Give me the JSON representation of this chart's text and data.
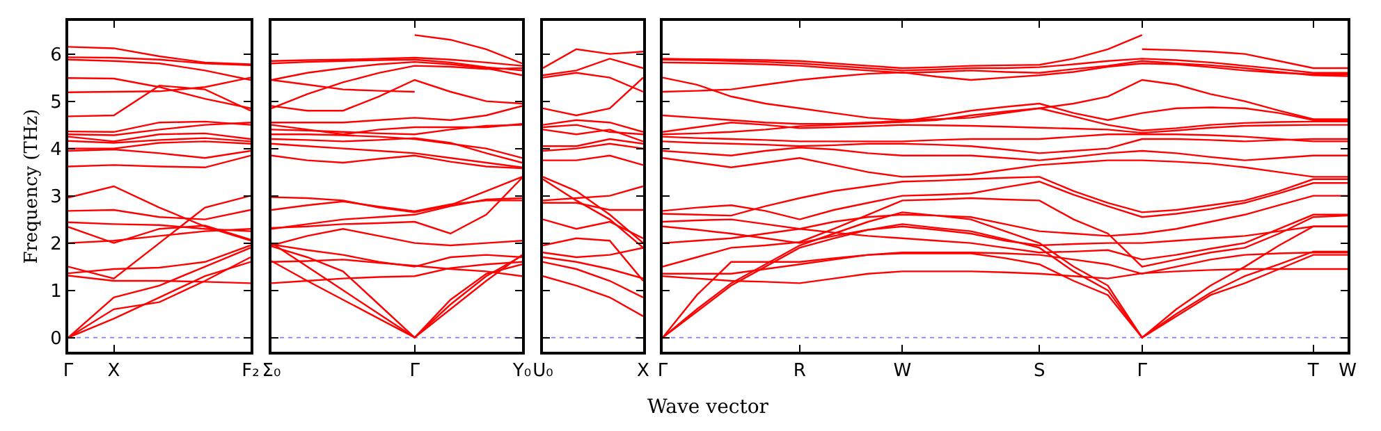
{
  "chart_data": [
    {
      "type": "line",
      "ylabel": "Frequency (THz)",
      "categories": [
        "Γ",
        "X",
        null,
        null,
        "F₂"
      ],
      "ylim": [
        -0.3,
        6.7
      ],
      "yticks": [
        0,
        1,
        2,
        3,
        4,
        5,
        6
      ],
      "grid": false,
      "marker": "none",
      "line_style": "solid",
      "ref_lines": [
        {
          "axis": "y",
          "value": 0,
          "color": "#8080ff",
          "line_style": "dotted"
        }
      ],
      "series": [
        {
          "color": "#ff0000",
          "values": [
            6.15,
            6.12,
            5.95,
            5.82,
            5.78
          ]
        },
        {
          "color": "#ff0000",
          "values": [
            5.93,
            5.92,
            5.88,
            5.8,
            5.76
          ]
        },
        {
          "color": "#ff0000",
          "values": [
            5.88,
            5.85,
            5.8,
            5.65,
            5.45
          ]
        },
        {
          "color": "#ff0000",
          "values": [
            5.49,
            5.48,
            5.3,
            5.05,
            4.85
          ]
        },
        {
          "color": "#ff0000",
          "values": [
            5.19,
            5.2,
            5.21,
            5.3,
            5.5
          ]
        },
        {
          "color": "#ff0000",
          "values": [
            4.68,
            4.7,
            5.33,
            5.25,
            4.8
          ]
        },
        {
          "color": "#ff0000",
          "values": [
            4.36,
            4.35,
            4.55,
            4.57,
            4.5
          ]
        },
        {
          "color": "#ff0000",
          "values": [
            4.3,
            4.28,
            4.4,
            4.5,
            4.55
          ]
        },
        {
          "color": "#ff0000",
          "values": [
            4.25,
            4.15,
            4.3,
            4.32,
            4.2
          ]
        },
        {
          "color": "#ff0000",
          "values": [
            4.16,
            4.12,
            4.18,
            4.22,
            4.15
          ]
        },
        {
          "color": "#ff0000",
          "values": [
            4.0,
            4.0,
            4.12,
            4.15,
            4.1
          ]
        },
        {
          "color": "#ff0000",
          "values": [
            3.95,
            3.98,
            3.9,
            3.8,
            3.95
          ]
        },
        {
          "color": "#ff0000",
          "values": [
            3.62,
            3.65,
            3.62,
            3.6,
            3.85
          ]
        },
        {
          "color": "#ff0000",
          "values": [
            2.96,
            3.2,
            2.75,
            2.35,
            2.05
          ]
        },
        {
          "color": "#ff0000",
          "values": [
            2.68,
            2.7,
            2.55,
            2.5,
            2.7
          ]
        },
        {
          "color": "#ff0000",
          "values": [
            2.44,
            2.4,
            2.38,
            2.3,
            2.25
          ]
        },
        {
          "color": "#ff0000",
          "values": [
            2.34,
            2.0,
            2.3,
            2.37,
            2.07
          ]
        },
        {
          "color": "#ff0000",
          "values": [
            2.0,
            2.05,
            2.15,
            2.25,
            2.3
          ]
        },
        {
          "color": "#ff0000",
          "values": [
            1.5,
            1.25,
            2.0,
            2.75,
            3.0
          ]
        },
        {
          "color": "#ff0000",
          "values": [
            1.36,
            1.45,
            1.48,
            1.6,
            1.95
          ]
        },
        {
          "color": "#ff0000",
          "values": [
            1.31,
            1.2,
            1.2,
            1.18,
            1.15
          ]
        },
        {
          "color": "#ff0000",
          "values": [
            0,
            0.85,
            1.1,
            1.5,
            1.9
          ]
        },
        {
          "color": "#ff0000",
          "values": [
            0,
            0.6,
            0.75,
            1.2,
            1.7
          ]
        },
        {
          "color": "#ff0000",
          "values": [
            0,
            0.4,
            0.85,
            1.3,
            1.6
          ]
        }
      ]
    },
    {
      "type": "line",
      "tick_labels": "x",
      "categories": [
        "Σ₀",
        null,
        null,
        null,
        "Γ",
        null,
        null,
        "Y₀"
      ],
      "ylim": [
        -0.3,
        6.7
      ],
      "yticks": [
        0,
        1,
        2,
        3,
        4,
        5,
        6
      ],
      "grid": false,
      "marker": "none",
      "line_style": "solid",
      "ref_lines": [
        {
          "axis": "y",
          "value": 0,
          "color": "#8080ff",
          "line_style": "dotted"
        }
      ],
      "series": [
        {
          "color": "#ff0000",
          "values": [
            null,
            null,
            null,
            null,
            6.4,
            6.3,
            6.1,
            5.8
          ]
        },
        {
          "color": "#ff0000",
          "values": [
            5.85,
            5.87,
            5.88,
            5.9,
            5.92,
            5.88,
            5.82,
            5.75
          ]
        },
        {
          "color": "#ff0000",
          "values": [
            5.8,
            5.83,
            5.85,
            5.87,
            5.88,
            5.82,
            5.72,
            5.65
          ]
        },
        {
          "color": "#ff0000",
          "values": [
            5.45,
            5.6,
            5.7,
            5.78,
            5.83,
            5.78,
            5.7,
            5.55
          ]
        },
        {
          "color": "#ff0000",
          "values": [
            5.45,
            5.35,
            5.25,
            5.22,
            5.2,
            null,
            null,
            null
          ]
        },
        {
          "color": "#ff0000",
          "values": [
            4.9,
            4.8,
            4.8,
            5.1,
            5.45,
            5.2,
            5.0,
            4.95
          ]
        },
        {
          "color": "#ff0000",
          "values": [
            4.85,
            5.15,
            5.4,
            5.6,
            5.75,
            5.73,
            5.68,
            5.7
          ]
        },
        {
          "color": "#ff0000",
          "values": [
            4.55,
            4.55,
            4.55,
            4.6,
            4.65,
            4.6,
            4.7,
            4.9
          ]
        },
        {
          "color": "#ff0000",
          "values": [
            4.5,
            4.4,
            4.3,
            4.4,
            4.45,
            4.45,
            4.45,
            4.52
          ]
        },
        {
          "color": "#ff0000",
          "values": [
            4.4,
            4.38,
            4.35,
            4.32,
            4.3,
            4.4,
            4.48,
            4.5
          ]
        },
        {
          "color": "#ff0000",
          "values": [
            4.3,
            4.3,
            4.28,
            4.25,
            4.2,
            4.1,
            4.0,
            3.8
          ]
        },
        {
          "color": "#ff0000",
          "values": [
            4.2,
            4.18,
            4.15,
            4.18,
            4.22,
            4.12,
            3.9,
            3.7
          ]
        },
        {
          "color": "#ff0000",
          "values": [
            4.1,
            4.05,
            4.0,
            3.95,
            3.9,
            3.8,
            3.7,
            3.6
          ]
        },
        {
          "color": "#ff0000",
          "values": [
            3.85,
            3.75,
            3.7,
            3.78,
            3.85,
            3.72,
            3.62,
            3.58
          ]
        },
        {
          "color": "#ff0000",
          "values": [
            2.97,
            2.95,
            2.9,
            2.75,
            2.65,
            2.8,
            3.1,
            3.4
          ]
        },
        {
          "color": "#ff0000",
          "values": [
            2.7,
            2.8,
            2.88,
            2.77,
            2.67,
            2.82,
            2.9,
            2.9
          ]
        },
        {
          "color": "#ff0000",
          "values": [
            2.3,
            2.4,
            2.5,
            2.55,
            2.6,
            2.78,
            2.92,
            2.95
          ]
        },
        {
          "color": "#ff0000",
          "values": [
            2.32,
            2.35,
            2.4,
            2.42,
            2.45,
            2.2,
            2.6,
            3.38
          ]
        },
        {
          "color": "#ff0000",
          "values": [
            1.95,
            2.15,
            2.3,
            2.15,
            2.0,
            1.95,
            2.0,
            2.05
          ]
        },
        {
          "color": "#ff0000",
          "values": [
            1.97,
            1.85,
            1.75,
            1.6,
            1.5,
            1.7,
            1.75,
            1.7
          ]
        },
        {
          "color": "#ff0000",
          "values": [
            1.6,
            1.62,
            1.65,
            1.58,
            1.52,
            1.45,
            1.4,
            1.3
          ]
        },
        {
          "color": "#ff0000",
          "values": [
            1.15,
            1.2,
            1.25,
            1.28,
            1.3,
            1.47,
            1.55,
            1.6
          ]
        },
        {
          "color": "#ff0000",
          "values": [
            2.0,
            1.5,
            1.0,
            0.5,
            0,
            0.6,
            1.2,
            1.75
          ]
        },
        {
          "color": "#ff0000",
          "values": [
            1.93,
            1.7,
            1.4,
            0.7,
            0,
            0.8,
            1.35,
            1.55
          ]
        },
        {
          "color": "#ff0000",
          "values": [
            1.62,
            1.2,
            0.8,
            0.4,
            0,
            0.7,
            1.3,
            1.73
          ]
        }
      ]
    },
    {
      "type": "line",
      "tick_labels": "x",
      "categories": [
        "U₀",
        null,
        null,
        "X"
      ],
      "ylim": [
        -0.3,
        6.7
      ],
      "yticks": [
        0,
        1,
        2,
        3,
        4,
        5,
        6
      ],
      "grid": false,
      "marker": "none",
      "line_style": "solid",
      "ref_lines": [
        {
          "axis": "y",
          "value": 0,
          "color": "#8080ff",
          "line_style": "dotted"
        }
      ],
      "series": [
        {
          "color": "#ff0000",
          "values": [
            5.7,
            6.1,
            6.0,
            6.05
          ]
        },
        {
          "color": "#ff0000",
          "values": [
            5.55,
            5.65,
            5.9,
            5.7
          ]
        },
        {
          "color": "#ff0000",
          "values": [
            5.5,
            5.6,
            5.5,
            5.2
          ]
        },
        {
          "color": "#ff0000",
          "values": [
            4.85,
            4.7,
            4.85,
            5.5
          ]
        },
        {
          "color": "#ff0000",
          "values": [
            4.5,
            4.6,
            4.55,
            4.35
          ]
        },
        {
          "color": "#ff0000",
          "values": [
            4.45,
            4.5,
            4.35,
            4.3
          ]
        },
        {
          "color": "#ff0000",
          "values": [
            4.4,
            4.3,
            4.4,
            4.15
          ]
        },
        {
          "color": "#ff0000",
          "values": [
            4.05,
            4.05,
            4.2,
            4.1
          ]
        },
        {
          "color": "#ff0000",
          "values": [
            3.95,
            4.0,
            4.1,
            4.0
          ]
        },
        {
          "color": "#ff0000",
          "values": [
            3.75,
            3.75,
            3.85,
            3.65
          ]
        },
        {
          "color": "#ff0000",
          "values": [
            3.4,
            3.1,
            2.6,
            2.0
          ]
        },
        {
          "color": "#ff0000",
          "values": [
            3.35,
            2.9,
            2.5,
            1.9
          ]
        },
        {
          "color": "#ff0000",
          "values": [
            2.9,
            2.95,
            3.0,
            3.2
          ]
        },
        {
          "color": "#ff0000",
          "values": [
            2.85,
            2.85,
            2.7,
            2.7
          ]
        },
        {
          "color": "#ff0000",
          "values": [
            2.5,
            2.3,
            2.45,
            2.1
          ]
        },
        {
          "color": "#ff0000",
          "values": [
            1.95,
            2.1,
            2.05,
            1.2
          ]
        },
        {
          "color": "#ff0000",
          "values": [
            1.8,
            1.7,
            1.75,
            1.9
          ]
        },
        {
          "color": "#ff0000",
          "values": [
            1.7,
            1.6,
            1.45,
            1.25
          ]
        },
        {
          "color": "#ff0000",
          "values": [
            1.6,
            1.45,
            1.2,
            0.85
          ]
        },
        {
          "color": "#ff0000",
          "values": [
            1.3,
            1.1,
            0.85,
            0.45
          ]
        }
      ]
    },
    {
      "type": "line",
      "tick_labels": "x",
      "xlabel": "Wave vector",
      "categories": [
        "Γ",
        null,
        null,
        null,
        "R",
        null,
        null,
        "W",
        null,
        null,
        null,
        "S",
        null,
        null,
        "Γ",
        null,
        null,
        null,
        null,
        "T",
        "W"
      ],
      "ylim": [
        -0.3,
        6.7
      ],
      "yticks": [
        0,
        1,
        2,
        3,
        4,
        5,
        6
      ],
      "grid": false,
      "marker": "none",
      "line_style": "solid",
      "ref_lines": [
        {
          "axis": "y",
          "value": 0,
          "color": "#8080ff",
          "line_style": "dotted"
        }
      ],
      "series": [
        {
          "color": "#ff0000",
          "values": [
            5.9,
            5.89,
            5.88,
            5.87,
            5.85,
            5.8,
            5.75,
            5.7,
            5.72,
            5.75,
            5.76,
            5.77,
            5.9,
            6.1,
            6.4,
            null,
            null,
            null,
            null,
            null,
            null
          ]
        },
        {
          "color": "#ff0000",
          "values": [
            null,
            null,
            null,
            null,
            null,
            null,
            null,
            null,
            null,
            null,
            null,
            null,
            null,
            null,
            6.1,
            6.08,
            6.05,
            6.0,
            5.85,
            5.7,
            5.7
          ]
        },
        {
          "color": "#ff0000",
          "values": [
            5.88,
            5.87,
            5.85,
            5.83,
            5.8,
            5.75,
            5.7,
            5.65,
            5.67,
            5.7,
            5.7,
            5.72,
            5.78,
            5.85,
            5.9,
            5.87,
            5.82,
            5.75,
            5.68,
            5.6,
            5.6
          ]
        },
        {
          "color": "#ff0000",
          "values": [
            5.82,
            5.81,
            5.8,
            5.78,
            5.75,
            5.7,
            5.65,
            5.6,
            5.62,
            5.65,
            5.62,
            5.6,
            5.68,
            5.75,
            5.85,
            5.8,
            5.76,
            5.7,
            5.62,
            5.55,
            5.53
          ]
        },
        {
          "color": "#ff0000",
          "values": [
            5.5,
            5.35,
            5.1,
            4.95,
            4.85,
            4.75,
            4.65,
            4.6,
            4.62,
            4.65,
            4.75,
            4.85,
            4.95,
            5.1,
            5.45,
            5.35,
            5.15,
            5.0,
            4.8,
            4.62,
            4.62
          ]
        },
        {
          "color": "#ff0000",
          "values": [
            5.2,
            5.22,
            5.25,
            5.35,
            5.45,
            5.52,
            5.58,
            5.61,
            5.52,
            5.45,
            5.5,
            5.55,
            5.62,
            5.73,
            5.8,
            5.78,
            5.72,
            5.65,
            5.6,
            5.57,
            5.57
          ]
        },
        {
          "color": "#ff0000",
          "values": [
            4.7,
            4.65,
            4.6,
            4.55,
            4.52,
            4.52,
            4.55,
            4.58,
            4.68,
            4.8,
            4.88,
            4.95,
            4.75,
            4.6,
            4.75,
            4.85,
            4.87,
            4.85,
            4.75,
            4.6,
            4.6
          ]
        },
        {
          "color": "#ff0000",
          "values": [
            4.35,
            4.45,
            4.55,
            4.5,
            4.43,
            4.45,
            4.47,
            4.5,
            4.49,
            4.48,
            4.46,
            4.44,
            4.42,
            4.4,
            4.33,
            4.38,
            4.44,
            4.48,
            4.49,
            4.5,
            4.5
          ]
        },
        {
          "color": "#ff0000",
          "values": [
            4.3,
            4.32,
            4.35,
            4.4,
            4.47,
            4.5,
            4.53,
            4.56,
            4.6,
            4.7,
            4.78,
            4.85,
            4.68,
            4.5,
            4.38,
            4.43,
            4.5,
            4.54,
            4.56,
            4.57,
            4.57
          ]
        },
        {
          "color": "#ff0000",
          "values": [
            4.25,
            4.22,
            4.2,
            4.18,
            4.15,
            4.15,
            4.15,
            4.15,
            4.18,
            4.2,
            4.2,
            4.2,
            4.25,
            4.3,
            4.3,
            4.3,
            4.28,
            4.25,
            4.2,
            4.15,
            4.15
          ]
        },
        {
          "color": "#ff0000",
          "values": [
            4.15,
            4.12,
            4.1,
            4.08,
            4.05,
            4.07,
            4.1,
            4.1,
            4.08,
            4.05,
            3.98,
            3.9,
            3.95,
            4.0,
            4.2,
            4.2,
            4.18,
            4.15,
            4.18,
            4.2,
            4.2
          ]
        },
        {
          "color": "#ff0000",
          "values": [
            3.95,
            3.9,
            3.85,
            3.95,
            4.02,
            3.98,
            3.9,
            3.85,
            3.85,
            3.85,
            3.8,
            3.75,
            3.82,
            3.9,
            3.95,
            3.9,
            3.82,
            3.75,
            3.8,
            3.85,
            3.85
          ]
        },
        {
          "color": "#ff0000",
          "values": [
            3.8,
            3.7,
            3.6,
            3.7,
            3.8,
            3.65,
            3.5,
            3.4,
            3.42,
            3.45,
            3.55,
            3.65,
            3.7,
            3.75,
            3.75,
            3.72,
            3.68,
            3.6,
            3.5,
            3.4,
            3.4
          ]
        },
        {
          "color": "#ff0000",
          "values": [
            2.62,
            2.6,
            2.58,
            2.78,
            2.95,
            3.1,
            3.2,
            3.3,
            3.32,
            3.35,
            3.38,
            3.4,
            3.1,
            2.85,
            2.65,
            2.7,
            2.8,
            2.9,
            3.1,
            3.35,
            3.35
          ]
        },
        {
          "color": "#ff0000",
          "values": [
            2.68,
            2.75,
            2.8,
            2.68,
            2.5,
            2.7,
            2.85,
            3.0,
            3.02,
            3.05,
            3.18,
            3.3,
            3.02,
            2.78,
            2.55,
            2.62,
            2.72,
            2.85,
            3.05,
            3.27,
            3.27
          ]
        },
        {
          "color": "#ff0000",
          "values": [
            2.45,
            2.48,
            2.5,
            2.4,
            2.3,
            2.45,
            2.55,
            2.6,
            2.58,
            2.55,
            2.4,
            2.25,
            2.2,
            2.15,
            2.2,
            2.3,
            2.45,
            2.6,
            2.8,
            3.0,
            3.0
          ]
        },
        {
          "color": "#ff0000",
          "values": [
            2.35,
            2.28,
            2.2,
            2.1,
            2.0,
            2.15,
            2.28,
            2.35,
            2.28,
            2.2,
            2.05,
            1.95,
            1.98,
            2.0,
            2.0,
            2.05,
            2.1,
            2.15,
            2.25,
            2.35,
            2.35
          ]
        },
        {
          "color": "#ff0000",
          "values": [
            2.0,
            2.05,
            2.1,
            2.2,
            2.3,
            2.22,
            2.15,
            2.1,
            2.05,
            2.0,
            1.9,
            1.8,
            1.82,
            1.85,
            1.65,
            1.75,
            1.88,
            2.0,
            2.3,
            2.6,
            2.6
          ]
        },
        {
          "color": "#ff0000",
          "values": [
            1.5,
            1.7,
            1.9,
            1.95,
            2.02,
            2.3,
            2.6,
            2.9,
            2.92,
            2.95,
            2.92,
            2.9,
            2.5,
            2.2,
            1.5,
            1.65,
            1.8,
            1.9,
            2.2,
            2.55,
            2.58
          ]
        },
        {
          "color": "#ff0000",
          "values": [
            1.35,
            1.35,
            1.35,
            1.45,
            1.55,
            1.65,
            1.75,
            1.8,
            1.8,
            1.8,
            1.78,
            1.75,
            1.65,
            1.55,
            1.35,
            1.5,
            1.65,
            1.75,
            1.78,
            1.8,
            1.8
          ]
        },
        {
          "color": "#ff0000",
          "values": [
            1.3,
            1.25,
            1.2,
            1.18,
            1.15,
            1.25,
            1.35,
            1.4,
            1.4,
            1.4,
            1.38,
            1.35,
            1.3,
            1.25,
            1.36,
            1.4,
            1.43,
            1.45,
            1.45,
            1.45,
            1.45
          ]
        },
        {
          "color": "#ff0000",
          "values": [
            0,
            0.9,
            1.6,
            1.6,
            1.6,
            1.68,
            1.75,
            1.78,
            1.78,
            1.78,
            1.68,
            1.55,
            1.2,
            0.9,
            0,
            0.45,
            0.9,
            1.15,
            1.45,
            1.75,
            1.75
          ]
        },
        {
          "color": "#ff0000",
          "values": [
            0,
            0.6,
            1.15,
            1.55,
            1.95,
            2.2,
            2.45,
            2.65,
            2.58,
            2.5,
            2.25,
            2.0,
            1.5,
            1.1,
            0,
            0.6,
            1.1,
            1.5,
            1.95,
            2.35,
            2.35
          ]
        },
        {
          "color": "#ff0000",
          "values": [
            0,
            0.55,
            1.1,
            1.5,
            1.9,
            2.1,
            2.28,
            2.4,
            2.32,
            2.25,
            2.08,
            1.9,
            1.4,
            1.0,
            0,
            0.5,
            0.95,
            1.3,
            1.55,
            1.82,
            1.82
          ]
        }
      ]
    }
  ]
}
